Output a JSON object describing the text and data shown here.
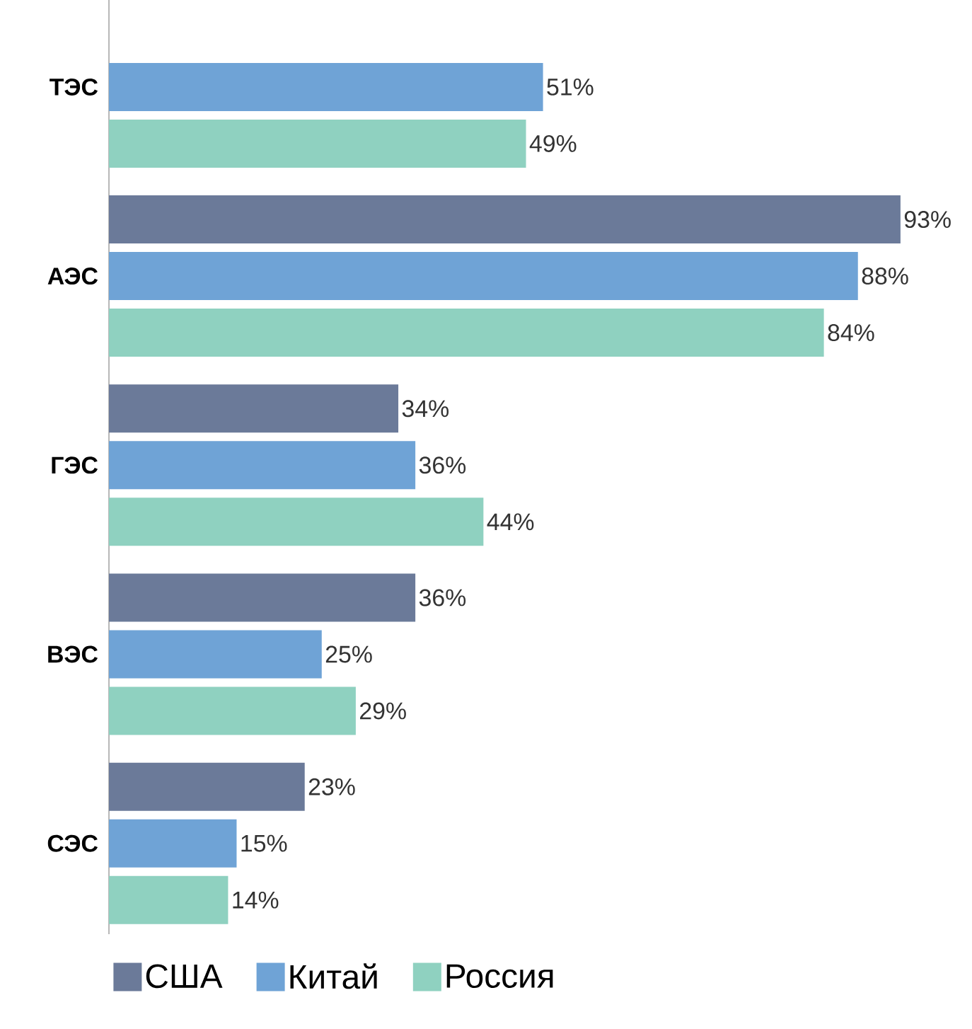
{
  "chart_data": {
    "type": "bar",
    "orientation": "horizontal",
    "categories": [
      "ТЭС",
      "АЭС",
      "ГЭС",
      "ВЭС",
      "СЭС"
    ],
    "series": [
      {
        "name": "США",
        "color": "#6b7a99",
        "values": [
          null,
          93,
          34,
          36,
          23
        ],
        "value_labels": [
          null,
          "93%",
          "34%",
          "36%",
          "23%"
        ]
      },
      {
        "name": "Китай",
        "color": "#6fa3d6",
        "values": [
          51,
          88,
          36,
          25,
          15
        ],
        "value_labels": [
          "51%",
          "88%",
          "36%",
          "25%",
          "15%"
        ]
      },
      {
        "name": "Россия",
        "color": "#8fd1c0",
        "values": [
          49,
          84,
          44,
          29,
          14
        ],
        "value_labels": [
          "49%",
          "84%",
          "44%",
          "29%",
          "14%"
        ]
      }
    ],
    "legend": "bottom left"
  }
}
